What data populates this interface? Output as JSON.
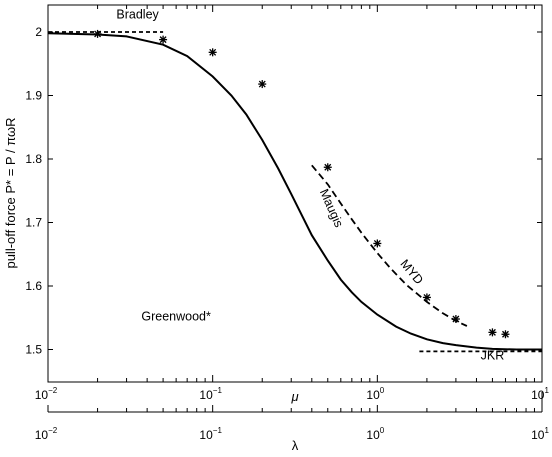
{
  "chart_data": {
    "type": "line",
    "x_scale": "log",
    "xlim": [
      0.01,
      10
    ],
    "ylim": [
      1.45,
      2.05
    ],
    "grid": false,
    "ylabel": "pull-off force P* = P / πωR",
    "xlabel": "μ",
    "secondary_xlabel": "λ",
    "secondary_xlim": [
      0.01,
      10
    ],
    "x_ticks": [
      {
        "base": "10",
        "exp": "−2",
        "value": 0.01
      },
      {
        "base": "10",
        "exp": "−1",
        "value": 0.1
      },
      {
        "base": "10",
        "exp": "0",
        "value": 1
      },
      {
        "base": "10",
        "exp": "1",
        "value": 10
      }
    ],
    "y_ticks": [
      "1.5",
      "1.6",
      "1.7",
      "1.8",
      "1.9",
      "2"
    ],
    "y_tick_values": [
      1.5,
      1.6,
      1.7,
      1.8,
      1.9,
      2.0
    ],
    "series": [
      {
        "name": "Maugis",
        "style": "solid",
        "x": [
          0.01,
          0.02,
          0.03,
          0.05,
          0.07,
          0.1,
          0.13,
          0.16,
          0.2,
          0.25,
          0.3,
          0.35,
          0.4,
          0.5,
          0.6,
          0.7,
          0.8,
          1.0,
          1.3,
          1.6,
          2.0,
          2.5,
          3.0,
          4.0,
          5.0,
          7.0,
          10.0
        ],
        "y": [
          1.998,
          1.996,
          1.993,
          1.98,
          1.962,
          1.93,
          1.9,
          1.87,
          1.83,
          1.785,
          1.745,
          1.71,
          1.68,
          1.64,
          1.61,
          1.59,
          1.575,
          1.555,
          1.536,
          1.525,
          1.516,
          1.51,
          1.507,
          1.503,
          1.501,
          1.5,
          1.5
        ]
      },
      {
        "name": "MYD",
        "style": "dashed",
        "x": [
          0.4,
          0.5,
          0.6,
          0.7,
          0.8,
          0.9,
          1.0,
          1.2,
          1.5,
          2.0,
          2.5,
          3.0,
          3.5
        ],
        "y": [
          1.79,
          1.76,
          1.73,
          1.705,
          1.684,
          1.667,
          1.652,
          1.628,
          1.602,
          1.575,
          1.557,
          1.545,
          1.537
        ]
      },
      {
        "name": "Bradley",
        "style": "dashed",
        "x": [
          0.01,
          0.05
        ],
        "y": [
          2.0,
          2.0
        ]
      },
      {
        "name": "JKR",
        "style": "dashed",
        "x": [
          1.8,
          10.0
        ],
        "y": [
          1.497,
          1.497
        ]
      },
      {
        "name": "Greenwood*",
        "style": "markers",
        "marker": "asterisk",
        "x": [
          0.02,
          0.05,
          0.1,
          0.2,
          0.5,
          1.0,
          2.0,
          3.0,
          5.0,
          6.0
        ],
        "y": [
          1.997,
          1.988,
          1.968,
          1.918,
          1.787,
          1.667,
          1.582,
          1.548,
          1.527,
          1.524
        ]
      }
    ],
    "annotations": [
      {
        "text": "Bradley",
        "x": 0.035,
        "y": 2.021
      },
      {
        "text": "Maugis",
        "x": 0.5,
        "y": 1.72,
        "rotation": 66
      },
      {
        "text": "MYD",
        "x": 1.55,
        "y": 1.618,
        "rotation": 50
      },
      {
        "text": "JKR",
        "x": 5.0,
        "y": 1.484
      },
      {
        "text": "Greenwood*",
        "x": 0.06,
        "y": 1.546
      }
    ]
  }
}
